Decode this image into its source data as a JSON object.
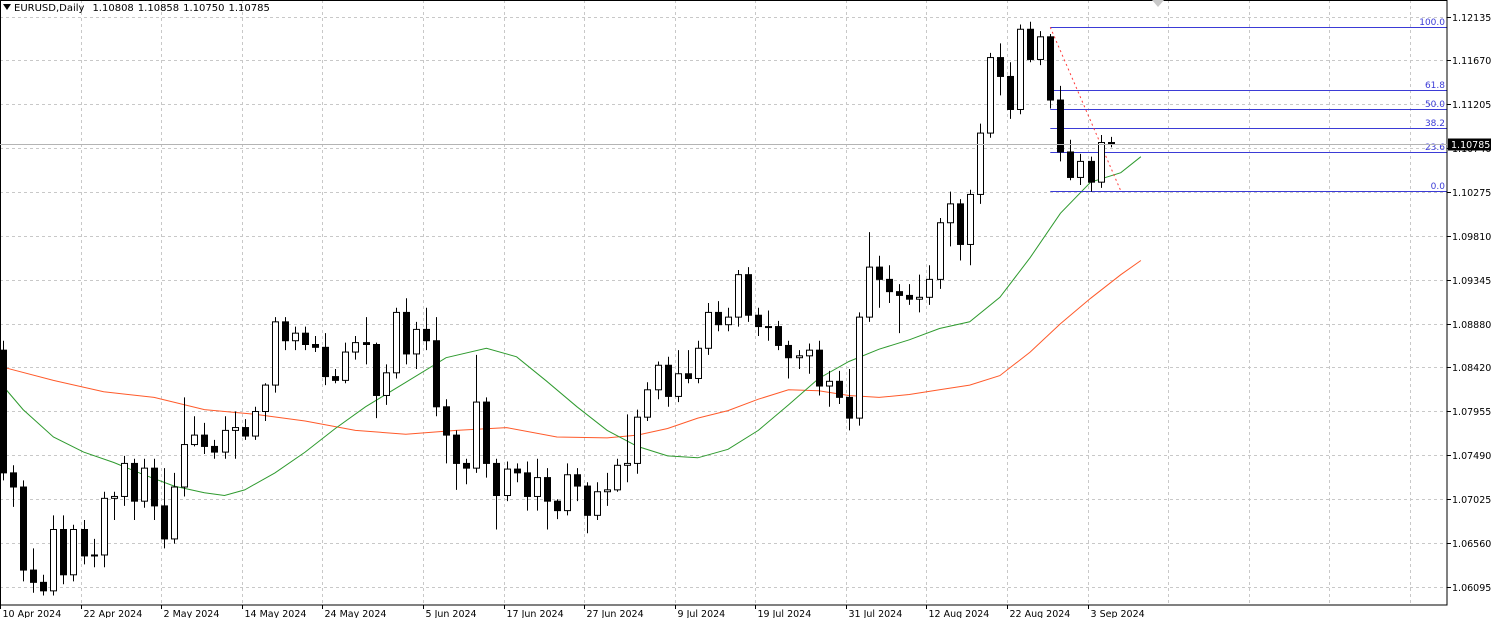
{
  "header": {
    "symbol": "EURUSD,Daily",
    "open": "1.10808",
    "high": "1.10858",
    "low": "1.10750",
    "close": "1.10785"
  },
  "current_price_label": "1.10785",
  "colors": {
    "background": "#ffffff",
    "grid": "#c8c8c8",
    "candle_up_body": "#ffffff",
    "candle_down_body": "#000000",
    "candle_outline": "#000000",
    "ma_fast": "#2e9a2e",
    "ma_slow": "#ff5a2a",
    "fibo": "#3b3bd6",
    "price_label_bg": "#000000",
    "price_label_text": "#ffffff"
  },
  "chart_data": {
    "type": "candlestick",
    "symbol": "EURUSD",
    "timeframe": "Daily",
    "y_ticks": [
      "1.12135",
      "1.11670",
      "1.11205",
      "1.10740",
      "1.10275",
      "1.09810",
      "1.09345",
      "1.08880",
      "1.08420",
      "1.07955",
      "1.07490",
      "1.07025",
      "1.06560",
      "1.06095"
    ],
    "y_range": [
      1.059,
      1.1231
    ],
    "x_ticks": [
      "10 Apr 2024",
      "22 Apr 2024",
      "2 May 2024",
      "14 May 2024",
      "24 May 2024",
      "5 Jun 2024",
      "17 Jun 2024",
      "27 Jun 2024",
      "9 Jul 2024",
      "19 Jul 2024",
      "31 Jul 2024",
      "12 Aug 2024",
      "22 Aug 2024",
      "3 Sep 2024"
    ],
    "grid": true,
    "candles": [
      {
        "o": 1.086,
        "h": 1.087,
        "l": 1.0722,
        "c": 1.073
      },
      {
        "o": 1.073,
        "h": 1.0738,
        "l": 1.0694,
        "c": 1.0715
      },
      {
        "o": 1.0715,
        "h": 1.0722,
        "l": 1.0615,
        "c": 1.0627
      },
      {
        "o": 1.0627,
        "h": 1.065,
        "l": 1.0603,
        "c": 1.0614
      },
      {
        "o": 1.0614,
        "h": 1.0622,
        "l": 1.06,
        "c": 1.0605
      },
      {
        "o": 1.0605,
        "h": 1.0685,
        "l": 1.06,
        "c": 1.067
      },
      {
        "o": 1.067,
        "h": 1.0685,
        "l": 1.0612,
        "c": 1.0622
      },
      {
        "o": 1.0622,
        "h": 1.0675,
        "l": 1.0615,
        "c": 1.067
      },
      {
        "o": 1.067,
        "h": 1.068,
        "l": 1.0633,
        "c": 1.0642
      },
      {
        "o": 1.0642,
        "h": 1.066,
        "l": 1.063,
        "c": 1.0643
      },
      {
        "o": 1.0643,
        "h": 1.071,
        "l": 1.063,
        "c": 1.0703
      },
      {
        "o": 1.0703,
        "h": 1.071,
        "l": 1.068,
        "c": 1.0705
      },
      {
        "o": 1.0705,
        "h": 1.0748,
        "l": 1.0695,
        "c": 1.074
      },
      {
        "o": 1.074,
        "h": 1.0745,
        "l": 1.068,
        "c": 1.07
      },
      {
        "o": 1.07,
        "h": 1.0745,
        "l": 1.0693,
        "c": 1.0735
      },
      {
        "o": 1.0735,
        "h": 1.0745,
        "l": 1.068,
        "c": 1.0695
      },
      {
        "o": 1.0695,
        "h": 1.0735,
        "l": 1.065,
        "c": 1.066
      },
      {
        "o": 1.066,
        "h": 1.073,
        "l": 1.0655,
        "c": 1.0715
      },
      {
        "o": 1.0715,
        "h": 1.081,
        "l": 1.0705,
        "c": 1.076
      },
      {
        "o": 1.076,
        "h": 1.079,
        "l": 1.0758,
        "c": 1.077
      },
      {
        "o": 1.077,
        "h": 1.0783,
        "l": 1.075,
        "c": 1.0758
      },
      {
        "o": 1.0758,
        "h": 1.0765,
        "l": 1.0745,
        "c": 1.0752
      },
      {
        "o": 1.0752,
        "h": 1.079,
        "l": 1.0745,
        "c": 1.0775
      },
      {
        "o": 1.0775,
        "h": 1.0795,
        "l": 1.0745,
        "c": 1.0778
      },
      {
        "o": 1.0778,
        "h": 1.0787,
        "l": 1.0765,
        "c": 1.0769
      },
      {
        "o": 1.0769,
        "h": 1.08,
        "l": 1.0765,
        "c": 1.0795
      },
      {
        "o": 1.0795,
        "h": 1.0825,
        "l": 1.0785,
        "c": 1.0823
      },
      {
        "o": 1.0823,
        "h": 1.0895,
        "l": 1.0815,
        "c": 1.089
      },
      {
        "o": 1.089,
        "h": 1.0895,
        "l": 1.086,
        "c": 1.087
      },
      {
        "o": 1.087,
        "h": 1.0885,
        "l": 1.086,
        "c": 1.0878
      },
      {
        "o": 1.0878,
        "h": 1.0885,
        "l": 1.086,
        "c": 1.0866
      },
      {
        "o": 1.0866,
        "h": 1.0875,
        "l": 1.0858,
        "c": 1.0863
      },
      {
        "o": 1.0863,
        "h": 1.0878,
        "l": 1.0823,
        "c": 1.0832
      },
      {
        "o": 1.0832,
        "h": 1.084,
        "l": 1.0825,
        "c": 1.0828
      },
      {
        "o": 1.0828,
        "h": 1.0868,
        "l": 1.0825,
        "c": 1.0858
      },
      {
        "o": 1.0858,
        "h": 1.0875,
        "l": 1.085,
        "c": 1.0868
      },
      {
        "o": 1.0868,
        "h": 1.0895,
        "l": 1.0845,
        "c": 1.0866
      },
      {
        "o": 1.0866,
        "h": 1.0868,
        "l": 1.0788,
        "c": 1.0812
      },
      {
        "o": 1.0812,
        "h": 1.0845,
        "l": 1.0802,
        "c": 1.0836
      },
      {
        "o": 1.0836,
        "h": 1.0905,
        "l": 1.083,
        "c": 1.09
      },
      {
        "o": 1.09,
        "h": 1.0915,
        "l": 1.0845,
        "c": 1.0856
      },
      {
        "o": 1.0856,
        "h": 1.089,
        "l": 1.084,
        "c": 1.0882
      },
      {
        "o": 1.0882,
        "h": 1.0905,
        "l": 1.086,
        "c": 1.087
      },
      {
        "o": 1.087,
        "h": 1.0895,
        "l": 1.079,
        "c": 1.08
      },
      {
        "o": 1.08,
        "h": 1.0808,
        "l": 1.074,
        "c": 1.077
      },
      {
        "o": 1.077,
        "h": 1.0775,
        "l": 1.0712,
        "c": 1.074
      },
      {
        "o": 1.074,
        "h": 1.0745,
        "l": 1.0718,
        "c": 1.0735
      },
      {
        "o": 1.0735,
        "h": 1.0855,
        "l": 1.073,
        "c": 1.0805
      },
      {
        "o": 1.0805,
        "h": 1.081,
        "l": 1.0725,
        "c": 1.074
      },
      {
        "o": 1.074,
        "h": 1.0745,
        "l": 1.067,
        "c": 1.0706
      },
      {
        "o": 1.0706,
        "h": 1.0742,
        "l": 1.07,
        "c": 1.0734
      },
      {
        "o": 1.0734,
        "h": 1.074,
        "l": 1.072,
        "c": 1.073
      },
      {
        "o": 1.073,
        "h": 1.0742,
        "l": 1.069,
        "c": 1.0705
      },
      {
        "o": 1.0705,
        "h": 1.0745,
        "l": 1.069,
        "c": 1.0725
      },
      {
        "o": 1.0725,
        "h": 1.0735,
        "l": 1.067,
        "c": 1.07
      },
      {
        "o": 1.07,
        "h": 1.0702,
        "l": 1.0681,
        "c": 1.069
      },
      {
        "o": 1.069,
        "h": 1.074,
        "l": 1.0685,
        "c": 1.0728
      },
      {
        "o": 1.0728,
        "h": 1.0735,
        "l": 1.07,
        "c": 1.0716
      },
      {
        "o": 1.0716,
        "h": 1.072,
        "l": 1.0666,
        "c": 1.0685
      },
      {
        "o": 1.0685,
        "h": 1.072,
        "l": 1.068,
        "c": 1.071
      },
      {
        "o": 1.071,
        "h": 1.073,
        "l": 1.0695,
        "c": 1.0712
      },
      {
        "o": 1.0712,
        "h": 1.0745,
        "l": 1.071,
        "c": 1.0738
      },
      {
        "o": 1.0738,
        "h": 1.0792,
        "l": 1.072,
        "c": 1.074
      },
      {
        "o": 1.074,
        "h": 1.0797,
        "l": 1.0729,
        "c": 1.0789
      },
      {
        "o": 1.0789,
        "h": 1.0826,
        "l": 1.0785,
        "c": 1.0818
      },
      {
        "o": 1.0818,
        "h": 1.0848,
        "l": 1.0808,
        "c": 1.0844
      },
      {
        "o": 1.0844,
        "h": 1.0853,
        "l": 1.08,
        "c": 1.0811
      },
      {
        "o": 1.0811,
        "h": 1.086,
        "l": 1.0805,
        "c": 1.0835
      },
      {
        "o": 1.0835,
        "h": 1.086,
        "l": 1.0825,
        "c": 1.083
      },
      {
        "o": 1.083,
        "h": 1.087,
        "l": 1.0825,
        "c": 1.0862
      },
      {
        "o": 1.0862,
        "h": 1.091,
        "l": 1.0855,
        "c": 1.09
      },
      {
        "o": 1.09,
        "h": 1.0912,
        "l": 1.088,
        "c": 1.0887
      },
      {
        "o": 1.0887,
        "h": 1.0905,
        "l": 1.088,
        "c": 1.0895
      },
      {
        "o": 1.0895,
        "h": 1.0945,
        "l": 1.0885,
        "c": 1.094
      },
      {
        "o": 1.094,
        "h": 1.0948,
        "l": 1.089,
        "c": 1.0897
      },
      {
        "o": 1.0897,
        "h": 1.0905,
        "l": 1.0875,
        "c": 1.0885
      },
      {
        "o": 1.0885,
        "h": 1.0902,
        "l": 1.087,
        "c": 1.0885
      },
      {
        "o": 1.0885,
        "h": 1.0891,
        "l": 1.086,
        "c": 1.0865
      },
      {
        "o": 1.0865,
        "h": 1.087,
        "l": 1.083,
        "c": 1.0852
      },
      {
        "o": 1.0852,
        "h": 1.086,
        "l": 1.084,
        "c": 1.0854
      },
      {
        "o": 1.0854,
        "h": 1.0867,
        "l": 1.0835,
        "c": 1.086
      },
      {
        "o": 1.086,
        "h": 1.087,
        "l": 1.0812,
        "c": 1.0822
      },
      {
        "o": 1.0822,
        "h": 1.0838,
        "l": 1.08,
        "c": 1.0827
      },
      {
        "o": 1.0827,
        "h": 1.0838,
        "l": 1.0803,
        "c": 1.081
      },
      {
        "o": 1.081,
        "h": 1.084,
        "l": 1.0775,
        "c": 1.0788
      },
      {
        "o": 1.0788,
        "h": 1.09,
        "l": 1.078,
        "c": 1.0895
      },
      {
        "o": 1.0895,
        "h": 1.0985,
        "l": 1.089,
        "c": 1.0948
      },
      {
        "o": 1.0948,
        "h": 1.096,
        "l": 1.0905,
        "c": 1.0935
      },
      {
        "o": 1.0935,
        "h": 1.095,
        "l": 1.091,
        "c": 1.0922
      },
      {
        "o": 1.0922,
        "h": 1.093,
        "l": 1.0878,
        "c": 1.0918
      },
      {
        "o": 1.0918,
        "h": 1.093,
        "l": 1.0908,
        "c": 1.0914
      },
      {
        "o": 1.0914,
        "h": 1.094,
        "l": 1.09,
        "c": 1.0916
      },
      {
        "o": 1.0916,
        "h": 1.095,
        "l": 1.0908,
        "c": 1.0935
      },
      {
        "o": 1.0935,
        "h": 1.1,
        "l": 1.0925,
        "c": 1.0995
      },
      {
        "o": 1.0995,
        "h": 1.1028,
        "l": 1.097,
        "c": 1.1015
      },
      {
        "o": 1.1015,
        "h": 1.102,
        "l": 1.0955,
        "c": 1.0972
      },
      {
        "o": 1.0972,
        "h": 1.103,
        "l": 1.095,
        "c": 1.1025
      },
      {
        "o": 1.1025,
        "h": 1.11,
        "l": 1.1015,
        "c": 1.109
      },
      {
        "o": 1.109,
        "h": 1.1175,
        "l": 1.1085,
        "c": 1.117
      },
      {
        "o": 1.117,
        "h": 1.1185,
        "l": 1.113,
        "c": 1.115
      },
      {
        "o": 1.115,
        "h": 1.1165,
        "l": 1.1105,
        "c": 1.1115
      },
      {
        "o": 1.1115,
        "h": 1.1205,
        "l": 1.111,
        "c": 1.12
      },
      {
        "o": 1.12,
        "h": 1.1208,
        "l": 1.1165,
        "c": 1.1168
      },
      {
        "o": 1.1168,
        "h": 1.1198,
        "l": 1.1162,
        "c": 1.1192
      },
      {
        "o": 1.1192,
        "h": 1.1195,
        "l": 1.1116,
        "c": 1.1125
      },
      {
        "o": 1.1125,
        "h": 1.114,
        "l": 1.106,
        "c": 1.107
      },
      {
        "o": 1.107,
        "h": 1.1083,
        "l": 1.104,
        "c": 1.1043
      },
      {
        "o": 1.1043,
        "h": 1.1068,
        "l": 1.1035,
        "c": 1.106
      },
      {
        "o": 1.106,
        "h": 1.1065,
        "l": 1.1028,
        "c": 1.1038
      },
      {
        "o": 1.1038,
        "h": 1.1088,
        "l": 1.1032,
        "c": 1.108
      },
      {
        "o": 1.108,
        "h": 1.1086,
        "l": 1.1075,
        "c": 1.10785
      }
    ],
    "ma_fast": [
      [
        0,
        1.0822
      ],
      [
        2,
        1.0797
      ],
      [
        5,
        1.0768
      ],
      [
        8,
        1.0752
      ],
      [
        11,
        1.0741
      ],
      [
        14,
        1.0728
      ],
      [
        17,
        1.0716
      ],
      [
        20,
        1.0709
      ],
      [
        22,
        1.0706
      ],
      [
        24,
        1.0712
      ],
      [
        27,
        1.073
      ],
      [
        30,
        1.0752
      ],
      [
        33,
        1.0777
      ],
      [
        36,
        1.08
      ],
      [
        40,
        1.0826
      ],
      [
        44,
        1.0852
      ],
      [
        48,
        1.0862
      ],
      [
        51,
        1.0853
      ],
      [
        54,
        1.0827
      ],
      [
        57,
        1.08
      ],
      [
        60,
        1.0775
      ],
      [
        63,
        1.0758
      ],
      [
        66,
        1.0748
      ],
      [
        69,
        1.0746
      ],
      [
        72,
        1.0755
      ],
      [
        75,
        1.0775
      ],
      [
        78,
        1.0802
      ],
      [
        81,
        1.083
      ],
      [
        84,
        1.0848
      ],
      [
        87,
        1.0861
      ],
      [
        90,
        1.0871
      ],
      [
        93,
        1.0883
      ],
      [
        96,
        1.089
      ],
      [
        99,
        1.0916
      ],
      [
        102,
        1.0958
      ],
      [
        105,
        1.1005
      ],
      [
        108,
        1.1038
      ],
      [
        111,
        1.1048
      ],
      [
        113,
        1.1065
      ]
    ],
    "ma_slow": [
      [
        0,
        1.0842
      ],
      [
        5,
        1.0828
      ],
      [
        10,
        1.0816
      ],
      [
        15,
        1.081
      ],
      [
        20,
        1.0797
      ],
      [
        25,
        1.0792
      ],
      [
        30,
        1.0785
      ],
      [
        35,
        1.0775
      ],
      [
        40,
        1.0771
      ],
      [
        45,
        1.0775
      ],
      [
        50,
        1.0778
      ],
      [
        55,
        1.0768
      ],
      [
        60,
        1.0767
      ],
      [
        63,
        1.077
      ],
      [
        66,
        1.0777
      ],
      [
        69,
        1.0788
      ],
      [
        72,
        1.0796
      ],
      [
        75,
        1.0808
      ],
      [
        78,
        1.0818
      ],
      [
        81,
        1.0817
      ],
      [
        84,
        1.0812
      ],
      [
        87,
        1.081
      ],
      [
        90,
        1.0813
      ],
      [
        93,
        1.0818
      ],
      [
        96,
        1.0823
      ],
      [
        99,
        1.0833
      ],
      [
        102,
        1.0858
      ],
      [
        105,
        1.0888
      ],
      [
        108,
        1.0915
      ],
      [
        111,
        1.094
      ],
      [
        113,
        1.0955
      ]
    ],
    "fibonacci": {
      "start_index": 104,
      "end_index": 113,
      "levels": [
        {
          "label": "100.0",
          "price": 1.12021
        },
        {
          "label": "61.8",
          "price": 1.11359
        },
        {
          "label": "50.0",
          "price": 1.11155
        },
        {
          "label": "38.2",
          "price": 1.1095
        },
        {
          "label": "23.6",
          "price": 1.10696
        },
        {
          "label": "0.0",
          "price": 1.10288
        }
      ]
    },
    "current_price": 1.10785
  }
}
